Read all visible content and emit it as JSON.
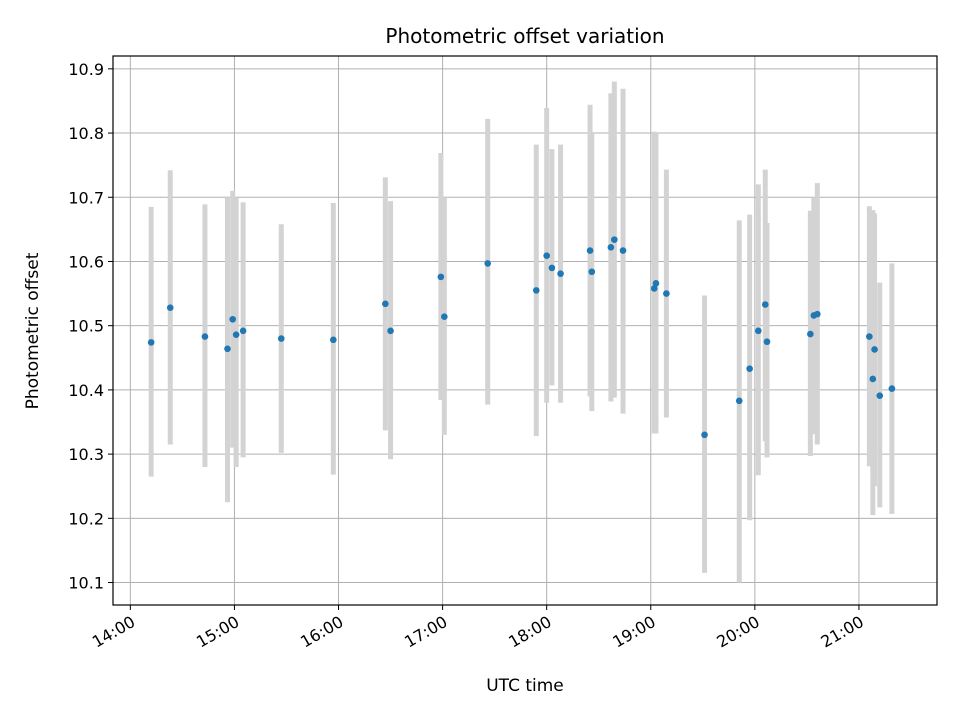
{
  "chart_data": {
    "type": "scatter",
    "title": "Photometric offset variation",
    "xlabel": "UTC time",
    "ylabel": "Photometric offset",
    "xlim": [
      "13:50",
      "21:45"
    ],
    "ylim": [
      10.065,
      10.92
    ],
    "x_ticks": [
      "14:00",
      "15:00",
      "16:00",
      "17:00",
      "18:00",
      "19:00",
      "20:00",
      "21:00"
    ],
    "y_ticks": [
      "10.1",
      "10.2",
      "10.3",
      "10.4",
      "10.5",
      "10.6",
      "10.7",
      "10.8",
      "10.9"
    ],
    "grid": true,
    "marker_color": "#1f77b4",
    "errorbar_color": "#d3d3d3",
    "points": [
      {
        "x": "14:12",
        "y": 10.474,
        "low": 10.265,
        "high": 10.685
      },
      {
        "x": "14:23",
        "y": 10.528,
        "low": 10.315,
        "high": 10.742
      },
      {
        "x": "14:43",
        "y": 10.483,
        "low": 10.28,
        "high": 10.689
      },
      {
        "x": "14:56",
        "y": 10.464,
        "low": 10.225,
        "high": 10.7
      },
      {
        "x": "14:59",
        "y": 10.51,
        "low": 10.31,
        "high": 10.71
      },
      {
        "x": "15:01",
        "y": 10.486,
        "low": 10.28,
        "high": 10.7
      },
      {
        "x": "15:05",
        "y": 10.492,
        "low": 10.295,
        "high": 10.692
      },
      {
        "x": "15:27",
        "y": 10.48,
        "low": 10.302,
        "high": 10.658
      },
      {
        "x": "15:57",
        "y": 10.478,
        "low": 10.268,
        "high": 10.691
      },
      {
        "x": "16:27",
        "y": 10.534,
        "low": 10.337,
        "high": 10.731
      },
      {
        "x": "16:30",
        "y": 10.492,
        "low": 10.292,
        "high": 10.694
      },
      {
        "x": "16:59",
        "y": 10.576,
        "low": 10.384,
        "high": 10.769
      },
      {
        "x": "17:01",
        "y": 10.514,
        "low": 10.33,
        "high": 10.7
      },
      {
        "x": "17:26",
        "y": 10.597,
        "low": 10.377,
        "high": 10.822
      },
      {
        "x": "17:54",
        "y": 10.555,
        "low": 10.328,
        "high": 10.782
      },
      {
        "x": "18:00",
        "y": 10.609,
        "low": 10.38,
        "high": 10.839
      },
      {
        "x": "18:03",
        "y": 10.59,
        "low": 10.407,
        "high": 10.775
      },
      {
        "x": "18:08",
        "y": 10.581,
        "low": 10.38,
        "high": 10.782
      },
      {
        "x": "18:25",
        "y": 10.617,
        "low": 10.39,
        "high": 10.844
      },
      {
        "x": "18:26",
        "y": 10.584,
        "low": 10.367,
        "high": 10.8
      },
      {
        "x": "18:37",
        "y": 10.622,
        "low": 10.382,
        "high": 10.862
      },
      {
        "x": "18:39",
        "y": 10.634,
        "low": 10.388,
        "high": 10.88
      },
      {
        "x": "18:44",
        "y": 10.617,
        "low": 10.363,
        "high": 10.869
      },
      {
        "x": "19:02",
        "y": 10.558,
        "low": 10.332,
        "high": 10.802
      },
      {
        "x": "19:03",
        "y": 10.566,
        "low": 10.332,
        "high": 10.8
      },
      {
        "x": "19:09",
        "y": 10.55,
        "low": 10.357,
        "high": 10.743
      },
      {
        "x": "19:31",
        "y": 10.33,
        "low": 10.115,
        "high": 10.547
      },
      {
        "x": "19:51",
        "y": 10.383,
        "low": 10.1,
        "high": 10.664
      },
      {
        "x": "19:57",
        "y": 10.433,
        "low": 10.197,
        "high": 10.673
      },
      {
        "x": "20:02",
        "y": 10.492,
        "low": 10.267,
        "high": 10.72
      },
      {
        "x": "20:06",
        "y": 10.533,
        "low": 10.32,
        "high": 10.743
      },
      {
        "x": "20:07",
        "y": 10.475,
        "low": 10.295,
        "high": 10.66
      },
      {
        "x": "20:32",
        "y": 10.487,
        "low": 10.297,
        "high": 10.679
      },
      {
        "x": "20:34",
        "y": 10.516,
        "low": 10.331,
        "high": 10.7
      },
      {
        "x": "20:36",
        "y": 10.518,
        "low": 10.315,
        "high": 10.722
      },
      {
        "x": "21:06",
        "y": 10.483,
        "low": 10.281,
        "high": 10.686
      },
      {
        "x": "21:08",
        "y": 10.417,
        "low": 10.205,
        "high": 10.68
      },
      {
        "x": "21:09",
        "y": 10.463,
        "low": 10.25,
        "high": 10.675
      },
      {
        "x": "21:12",
        "y": 10.391,
        "low": 10.217,
        "high": 10.567
      },
      {
        "x": "21:19",
        "y": 10.402,
        "low": 10.207,
        "high": 10.597
      }
    ]
  }
}
